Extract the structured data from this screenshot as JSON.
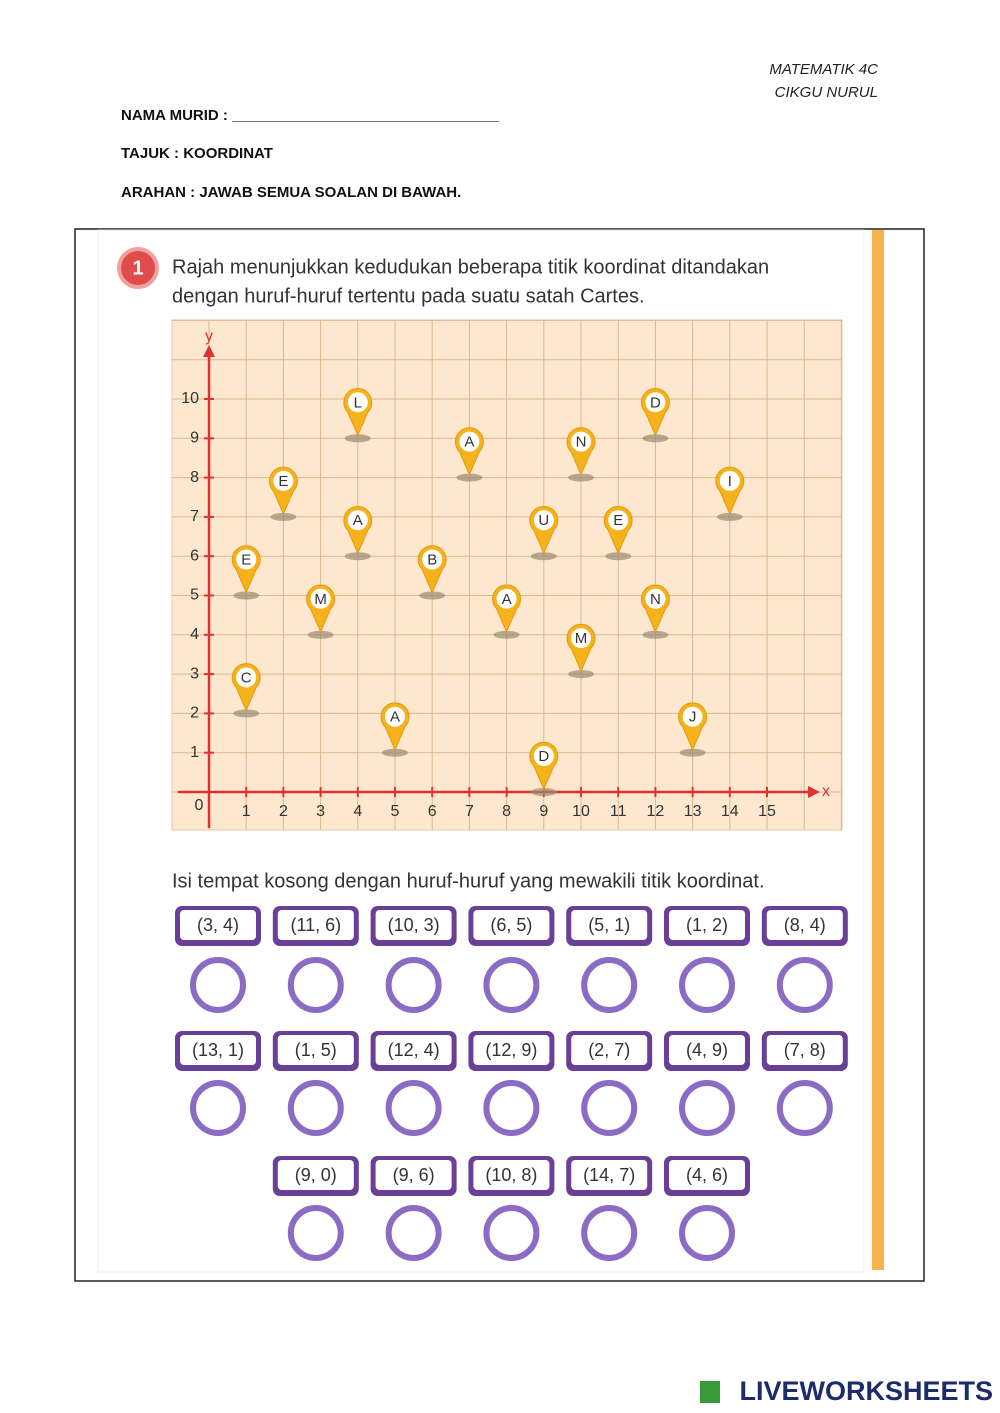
{
  "header": {
    "subject": "MATEMATIK 4C",
    "teacher": "CIKGU NURUL",
    "name_field": "NAMA MURID : ________________________________",
    "topic": "TAJUK : KOORDINAT",
    "instruction": "ARAHAN : JAWAB SEMUA SOALAN DI BAWAH."
  },
  "question": {
    "number": "1",
    "text_lines": [
      "Rajah menunjukkan kedudukan beberapa titik koordinat ditandakan",
      "dengan huruf-huruf tertentu pada suatu satah Cartes."
    ],
    "grid": {
      "x_label": "x",
      "y_label": "y",
      "origin": "0",
      "xticks": [
        1,
        2,
        3,
        4,
        5,
        6,
        7,
        8,
        9,
        10,
        11,
        12,
        13,
        14,
        15
      ],
      "yticks": [
        1,
        2,
        3,
        4,
        5,
        6,
        7,
        8,
        9,
        10
      ],
      "points": [
        {
          "label": "L",
          "x": 4,
          "y": 9
        },
        {
          "label": "D",
          "x": 12,
          "y": 9
        },
        {
          "label": "A",
          "x": 7,
          "y": 8
        },
        {
          "label": "N",
          "x": 10,
          "y": 8
        },
        {
          "label": "E",
          "x": 2,
          "y": 7
        },
        {
          "label": "I",
          "x": 14,
          "y": 7
        },
        {
          "label": "A",
          "x": 4,
          "y": 6
        },
        {
          "label": "U",
          "x": 9,
          "y": 6
        },
        {
          "label": "E",
          "x": 11,
          "y": 6
        },
        {
          "label": "E",
          "x": 1,
          "y": 5
        },
        {
          "label": "B",
          "x": 6,
          "y": 5
        },
        {
          "label": "M",
          "x": 3,
          "y": 4
        },
        {
          "label": "A",
          "x": 8,
          "y": 4
        },
        {
          "label": "N",
          "x": 12,
          "y": 4
        },
        {
          "label": "M",
          "x": 10,
          "y": 3
        },
        {
          "label": "C",
          "x": 1,
          "y": 2
        },
        {
          "label": "A",
          "x": 5,
          "y": 1
        },
        {
          "label": "J",
          "x": 13,
          "y": 1
        },
        {
          "label": "D",
          "x": 9,
          "y": 0
        }
      ]
    },
    "fill_instruction": "Isi tempat kosong dengan huruf-huruf yang mewakili titik koordinat.",
    "pairs": [
      [
        "(3, 4)",
        "(11, 6)",
        "(10, 3)",
        "(6, 5)",
        "(5, 1)",
        "(1, 2)",
        "(8, 4)"
      ],
      [
        "(13, 1)",
        "(1, 5)",
        "(12, 4)",
        "(12, 9)",
        "(2, 7)",
        "(4, 9)",
        "(7, 8)"
      ],
      [
        "(9, 0)",
        "(9, 6)",
        "(10, 8)",
        "(14, 7)",
        "(4, 6)"
      ]
    ]
  },
  "footer": {
    "brand": "LIVEWORKSHEETS"
  }
}
